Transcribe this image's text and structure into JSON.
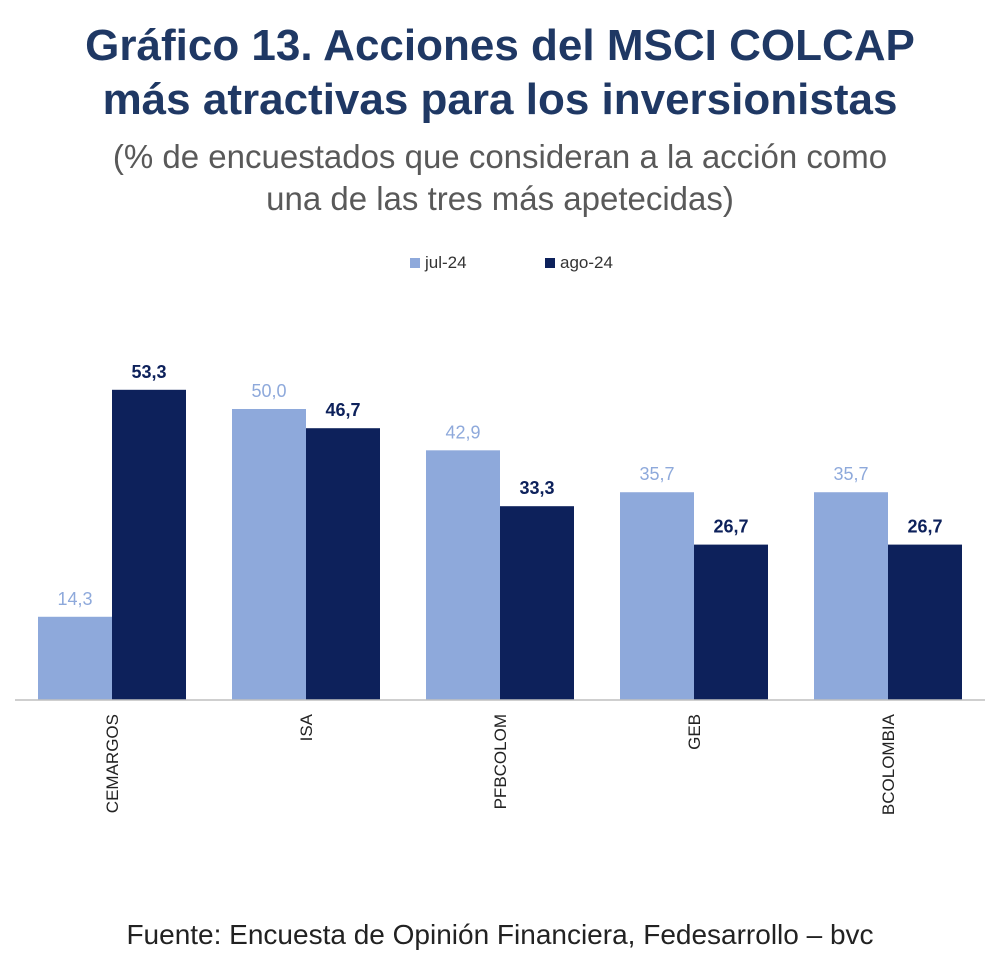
{
  "title_line1": "Gráfico 13. Acciones del MSCI COLCAP",
  "title_line2": "más atractivas para los inversionistas",
  "subtitle_line1": "(% de encuestados que consideran a la acción como",
  "subtitle_line2": "una de las tres más apetecidas)",
  "source": "Fuente: Encuesta de Opinión Financiera, Fedesarrollo – bvc",
  "colors": {
    "jul": "#8EA9DB",
    "ago": "#0D215B",
    "jul_label": "#8EA9DB",
    "ago_label": "#0D215B"
  },
  "chart_data": {
    "type": "bar",
    "categories": [
      "CEMARGOS",
      "ISA",
      "PFBCOLOM",
      "GEB",
      "BCOLOMBIA"
    ],
    "series": [
      {
        "name": "jul-24",
        "values": [
          14.3,
          50.0,
          42.9,
          35.7,
          35.7
        ],
        "labels": [
          "14,3",
          "50,0",
          "42,9",
          "35,7",
          "35,7"
        ]
      },
      {
        "name": "ago-24",
        "values": [
          53.3,
          46.7,
          33.3,
          26.7,
          26.7
        ],
        "labels": [
          "53,3",
          "46,7",
          "33,3",
          "26,7",
          "26,7"
        ]
      }
    ],
    "ylim": [
      0,
      60
    ],
    "legend": "top-center",
    "grid": false
  }
}
